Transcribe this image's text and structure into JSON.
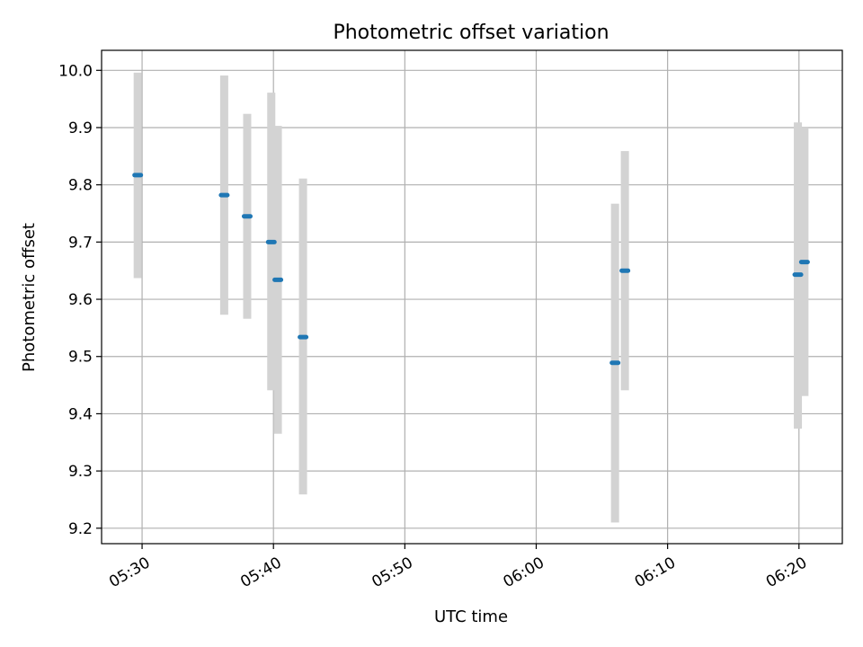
{
  "chart_data": {
    "type": "scatter",
    "title": "Photometric offset variation",
    "xlabel": "UTC time",
    "ylabel": "Photometric offset",
    "x_ticks": [
      "05:30",
      "05:40",
      "05:50",
      "06:00",
      "06:10",
      "06:20"
    ],
    "y_ticks": [
      "9.2",
      "9.3",
      "9.4",
      "9.5",
      "9.6",
      "9.7",
      "9.8",
      "9.9",
      "10.0"
    ],
    "xlim": [
      "05:26:55",
      "06:23:18"
    ],
    "ylim": [
      9.173,
      10.035
    ],
    "grid": true,
    "points": [
      {
        "time": "05:29:40",
        "value": 9.817,
        "err_low": 9.637,
        "err_high": 9.996
      },
      {
        "time": "05:36:15",
        "value": 9.782,
        "err_low": 9.573,
        "err_high": 9.991
      },
      {
        "time": "05:38:00",
        "value": 9.745,
        "err_low": 9.566,
        "err_high": 9.924
      },
      {
        "time": "05:39:50",
        "value": 9.7,
        "err_low": 9.441,
        "err_high": 9.961
      },
      {
        "time": "05:40:20",
        "value": 9.634,
        "err_low": 9.365,
        "err_high": 9.903
      },
      {
        "time": "05:42:15",
        "value": 9.534,
        "err_low": 9.259,
        "err_high": 9.811
      },
      {
        "time": "06:06:00",
        "value": 9.489,
        "err_low": 9.21,
        "err_high": 9.767
      },
      {
        "time": "06:06:45",
        "value": 9.65,
        "err_low": 9.441,
        "err_high": 9.859
      },
      {
        "time": "06:19:55",
        "value": 9.643,
        "err_low": 9.374,
        "err_high": 9.909
      },
      {
        "time": "06:20:25",
        "value": 9.665,
        "err_low": 9.431,
        "err_high": 9.9
      }
    ],
    "colors": {
      "marker": "#1f77b4",
      "errorbar": "#d3d3d3",
      "grid": "#b0b0b0",
      "axes": "#000000"
    }
  }
}
